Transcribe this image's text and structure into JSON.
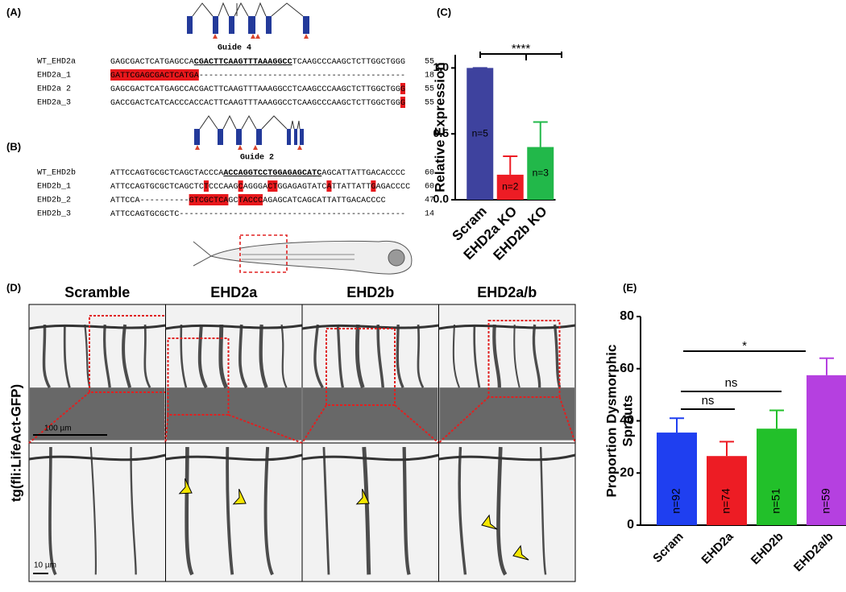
{
  "panel_labels": [
    "(A)",
    "(B)",
    "(C)",
    "(D)",
    "(E)"
  ],
  "alignment_a": {
    "guide": "Guide 4",
    "rows": [
      {
        "name": "WT_EHD2a",
        "sequence": [
          "GAGCGACTCATGAGCCA",
          "CGACTTCAAGTTTAAAGGCC",
          "TCAAGCCCAAGCTCTTGGCTGGG"
        ],
        "length": "55"
      },
      {
        "name": "EHD2a_1",
        "sequence": [
          "GATTCGAGCGACTCATGA------------------------------------------"
        ],
        "length": "18"
      },
      {
        "name": "EHD2a 2",
        "sequence": [
          "GAGCGACTCATGAGCCACGACTTCAAGTTTAAAGGCCTCAAGCCCAAGCTCTTGGCTGGG"
        ],
        "length": "55"
      },
      {
        "name": "EHD2a_3",
        "sequence": [
          "GACCGACTCATCACCCACCACTTCAAGTTTAAAGGCCTCAAGCCCAAGCTCTTGGCTGGG"
        ],
        "length": "55"
      }
    ]
  },
  "alignment_b": {
    "guide": "Guide 2",
    "rows": [
      {
        "name": "WT_EHD2b",
        "sequence": [
          "ATTCCAGTGCGCTCAGCTACCCA",
          "ACCAGGTCCTGGAGAGCATC",
          "AGCATTATTGACACCCC"
        ],
        "length": "60"
      },
      {
        "name": "EHD2b_1",
        "sequence": [
          "ATTCCAGTGCGCTCAGCTCTCCCAAGCAGGGACTGGAGAGTATCATTATTATTGAGACCCC"
        ],
        "length": "60"
      },
      {
        "name": "EHD2b_2",
        "sequence": [
          "ATTCCA----------GTCGCTCAGCTACCCAGAGCATCAGCATTATTGACACCCC"
        ],
        "length": "47"
      },
      {
        "name": "EHD2b_3",
        "sequence": [
          "ATTCCAGTGCGCTC----------------------------------------------"
        ],
        "length": "14"
      }
    ]
  },
  "chart_data": [
    {
      "type": "bar",
      "ylabel": [
        "Relative Expression"
      ],
      "categories": [
        "Scram",
        "EHD2a KO",
        "EHD2b KO"
      ],
      "values": [
        1.0,
        0.19,
        0.4
      ],
      "errors": [
        0,
        0.14,
        0.19
      ],
      "colors": [
        "#3e429e",
        "#ed1c24",
        "#22b84a"
      ],
      "n_labels": [
        "n=5",
        "n=2",
        "n=3"
      ],
      "ylim": [
        0,
        1.1
      ],
      "yticks": [
        {
          "value": 0,
          "label": "0.0"
        },
        {
          "value": 0.5,
          "label": "0.5"
        },
        {
          "value": 1,
          "label": "1.0"
        }
      ],
      "significance": [
        "****"
      ]
    },
    {
      "type": "bar",
      "ylabel": [
        "Proportion Dysmorphic",
        "Sprouts"
      ],
      "categories": [
        "Scram",
        "EHD2a",
        "EHD2b",
        "EHD2a/b"
      ],
      "values": [
        35.5,
        26.5,
        37,
        57.5
      ],
      "errors": [
        5.5,
        5.5,
        7,
        6.5
      ],
      "colors": [
        "#1f3ff0",
        "#ed1c24",
        "#22c02a",
        "#b540e0"
      ],
      "n_labels": [
        "n=92",
        "n=74",
        "n=51",
        "n=59"
      ],
      "ylim": [
        0,
        80
      ],
      "yticks": [
        0,
        20,
        40,
        60,
        80
      ],
      "significance": [
        "*",
        "ns",
        "ns"
      ]
    }
  ],
  "microscopy": {
    "columns": [
      "Scramble",
      "EHD2a",
      "EHD2b",
      "EHD2a/b"
    ],
    "row_label": "tg(fli:LifeAct-GFP)",
    "scale_bars": [
      "100 µm",
      "10 µm"
    ]
  }
}
